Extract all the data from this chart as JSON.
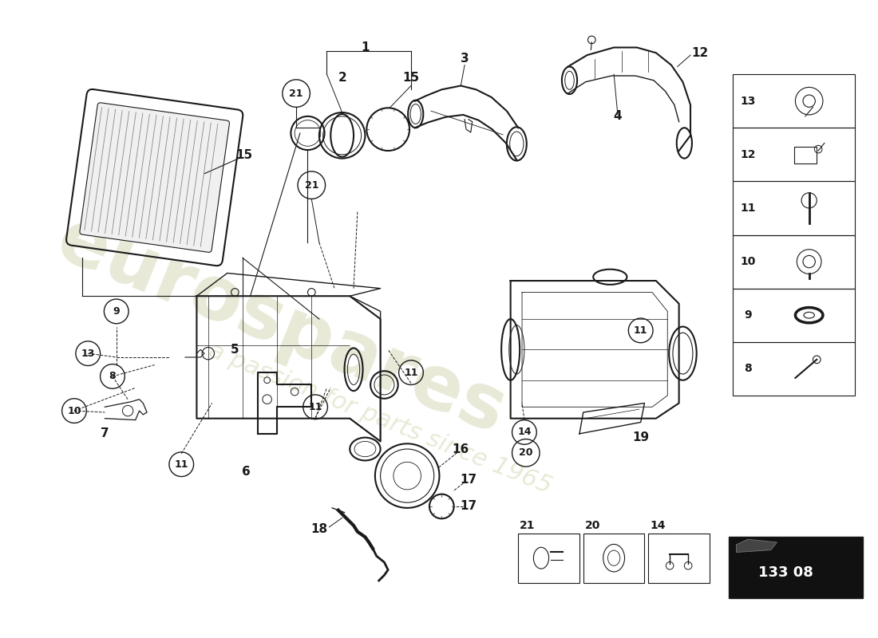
{
  "bg_color": "#ffffff",
  "line_color": "#1a1a1a",
  "wm1": "eurospares",
  "wm2": "a passion for parts since 1965",
  "wm_color": "#d4d4b0",
  "part_number": "133 08",
  "fig_w": 11.0,
  "fig_h": 8.0
}
